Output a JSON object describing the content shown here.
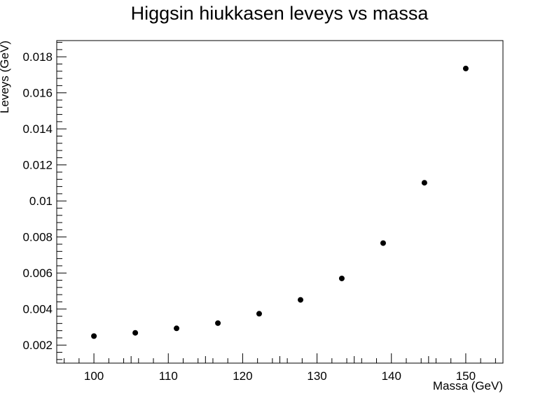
{
  "chart_data": {
    "type": "scatter",
    "title": "Higgsin hiukkasen leveys vs massa",
    "xlabel": "Massa (GeV)",
    "ylabel": "Leveys (GeV)",
    "xlim": [
      95,
      155
    ],
    "ylim": [
      0.001,
      0.0189
    ],
    "x_ticks": [
      100,
      110,
      120,
      130,
      140,
      150
    ],
    "x_tick_labels": [
      "100",
      "110",
      "120",
      "130",
      "140",
      "150"
    ],
    "y_ticks": [
      0.002,
      0.004,
      0.006,
      0.008,
      0.01,
      0.012,
      0.014,
      0.016,
      0.018
    ],
    "y_tick_labels": [
      "0.002",
      "0.004",
      "0.006",
      "0.008",
      "0.01",
      "0.012",
      "0.014",
      "0.016",
      "0.018"
    ],
    "grid": false,
    "marker_color": "#000000",
    "series": [
      {
        "x": [
          100.0,
          105.56,
          111.11,
          116.67,
          122.22,
          127.78,
          133.33,
          138.89,
          144.44,
          150.0
        ],
        "y": [
          0.0025,
          0.00268,
          0.00293,
          0.00322,
          0.00374,
          0.00451,
          0.0057,
          0.00766,
          0.01101,
          0.01735
        ]
      }
    ]
  }
}
